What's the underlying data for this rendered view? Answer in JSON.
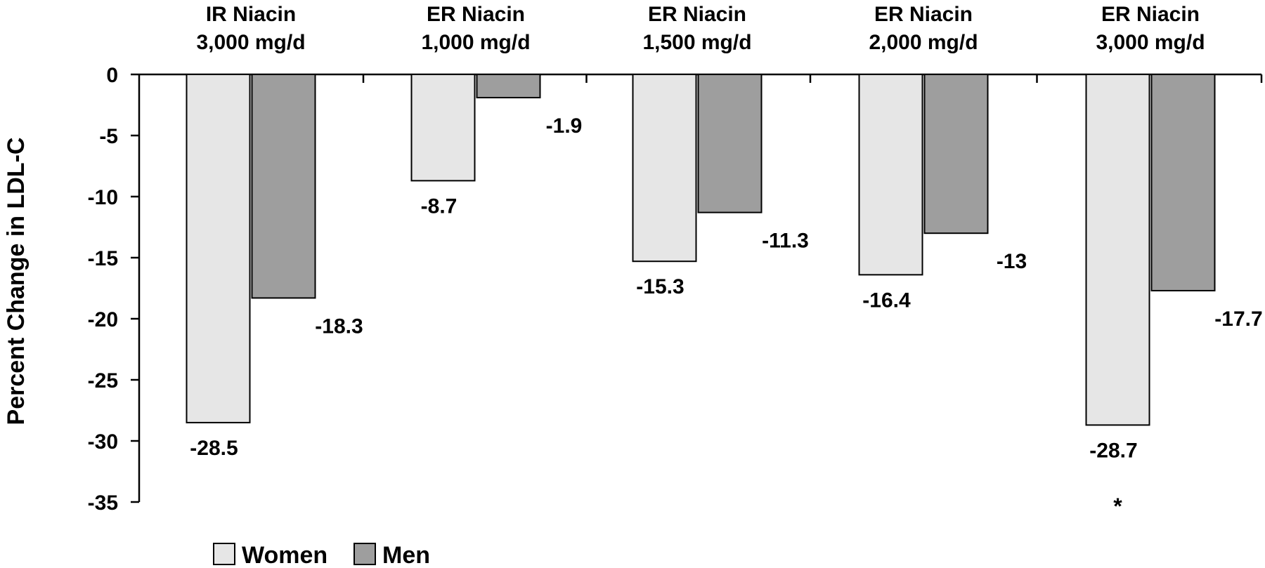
{
  "chart_data": {
    "type": "bar",
    "title": "",
    "xlabel": "",
    "ylabel": "Percent Change in LDL-C",
    "ylim": [
      -35,
      0
    ],
    "yticks": [
      0,
      -5,
      -10,
      -15,
      -20,
      -25,
      -30,
      -35
    ],
    "grid": false,
    "legend_position": "bottom-left",
    "categories": [
      [
        "IR Niacin",
        "3,000 mg/d"
      ],
      [
        "ER Niacin",
        "1,000 mg/d"
      ],
      [
        "ER Niacin",
        "1,500 mg/d"
      ],
      [
        "ER Niacin",
        "2,000 mg/d"
      ],
      [
        "ER Niacin",
        "3,000 mg/d"
      ]
    ],
    "series": [
      {
        "name": "Women",
        "color": "#e6e6e6",
        "values": [
          -28.5,
          -8.7,
          -15.3,
          -16.4,
          -28.7
        ],
        "data_labels": [
          "-28.5",
          "-8.7",
          "-15.3",
          "-16.4",
          "-28.7"
        ]
      },
      {
        "name": "Men",
        "color": "#9e9e9e",
        "values": [
          -18.3,
          -1.9,
          -11.3,
          -13,
          -17.7
        ],
        "data_labels": [
          "-18.3",
          "-1.9",
          "-11.3",
          "-13",
          "-17.7"
        ]
      }
    ],
    "annotations": [
      {
        "text": "*",
        "category_index": 4
      }
    ]
  }
}
